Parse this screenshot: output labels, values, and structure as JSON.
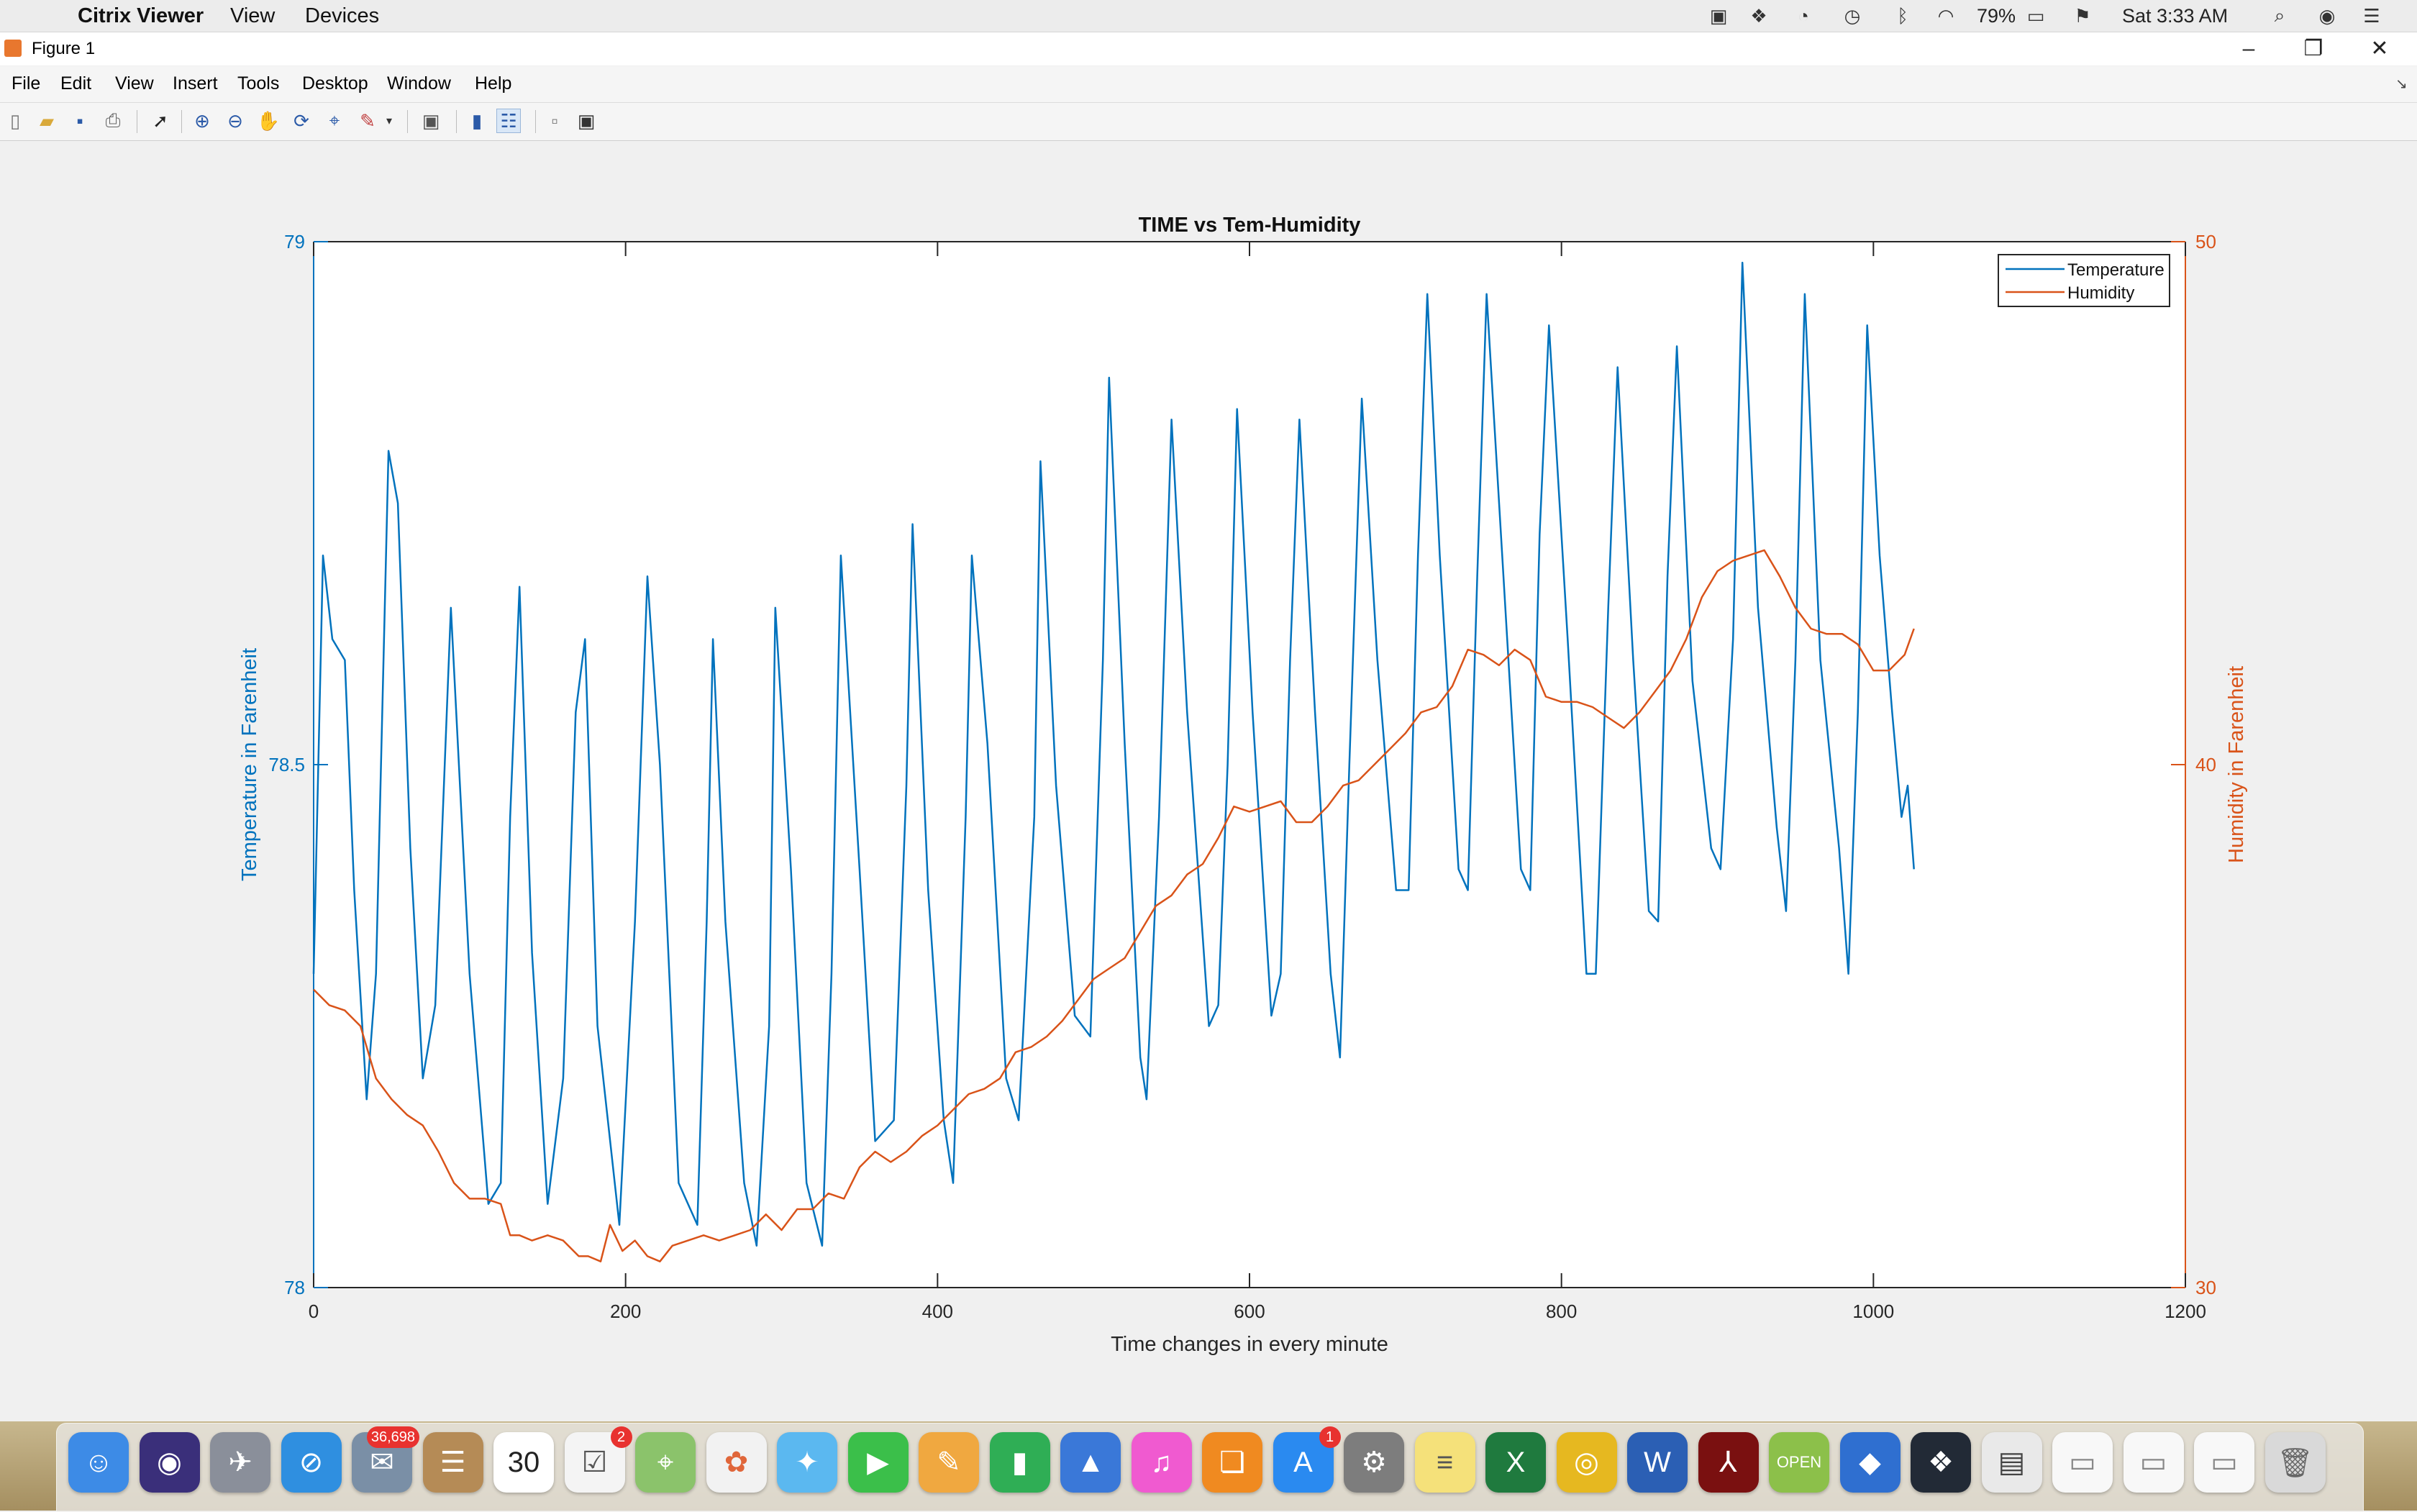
{
  "menubar": {
    "app_name": "Citrix Viewer",
    "items": [
      "View",
      "Devices"
    ],
    "battery": "79%",
    "clock": "Sat 3:33 AM"
  },
  "window": {
    "title": "Figure 1",
    "menu": [
      "File",
      "Edit",
      "View",
      "Insert",
      "Tools",
      "Desktop",
      "Window",
      "Help"
    ]
  },
  "toolbar": {
    "icons": [
      "new-figure-icon",
      "open-file-icon",
      "save-icon",
      "print-icon",
      "select-arrow-icon",
      "zoom-in-icon",
      "zoom-out-icon",
      "pan-hand-icon",
      "rotate-3d-icon",
      "data-cursor-icon",
      "brush-icon",
      "link-plot-icon",
      "colorbar-icon",
      "legend-icon",
      "hide-plot-tools-icon",
      "show-plot-tools-icon"
    ]
  },
  "chart_data": {
    "type": "line",
    "title": "TIME vs Tem-Humidity",
    "xlabel": "Time changes in every minute",
    "ylabel_left": "Temperature in Farenheit",
    "ylabel_right": "Humidity in Farenheit",
    "xlim": [
      0,
      1200
    ],
    "ylim_left": [
      78,
      79
    ],
    "ylim_right": [
      30,
      50
    ],
    "x_ticks": [
      0,
      200,
      400,
      600,
      800,
      1000,
      1200
    ],
    "y_ticks_left": [
      "78",
      "78.5",
      "79"
    ],
    "y_ticks_right": [
      "30",
      "40",
      "50"
    ],
    "legend_position": "top-right",
    "legend": [
      "Temperature",
      "Humidity"
    ],
    "colors": {
      "temperature": "#0072BD",
      "humidity": "#D95319",
      "left_axis": "#0072BD",
      "right_axis": "#D95319"
    },
    "series": [
      {
        "name": "Temperature",
        "axis": "left",
        "points": [
          [
            0,
            78.3
          ],
          [
            6,
            78.7
          ],
          [
            12,
            78.62
          ],
          [
            20,
            78.6
          ],
          [
            26,
            78.38
          ],
          [
            34,
            78.18
          ],
          [
            40,
            78.3
          ],
          [
            48,
            78.8
          ],
          [
            54,
            78.75
          ],
          [
            62,
            78.42
          ],
          [
            70,
            78.2
          ],
          [
            78,
            78.27
          ],
          [
            88,
            78.65
          ],
          [
            100,
            78.3
          ],
          [
            112,
            78.08
          ],
          [
            120,
            78.1
          ],
          [
            126,
            78.45
          ],
          [
            132,
            78.67
          ],
          [
            140,
            78.32
          ],
          [
            150,
            78.08
          ],
          [
            160,
            78.2
          ],
          [
            168,
            78.55
          ],
          [
            174,
            78.62
          ],
          [
            182,
            78.25
          ],
          [
            196,
            78.06
          ],
          [
            206,
            78.35
          ],
          [
            214,
            78.68
          ],
          [
            222,
            78.5
          ],
          [
            234,
            78.1
          ],
          [
            246,
            78.06
          ],
          [
            252,
            78.35
          ],
          [
            256,
            78.62
          ],
          [
            264,
            78.35
          ],
          [
            276,
            78.1
          ],
          [
            284,
            78.04
          ],
          [
            292,
            78.25
          ],
          [
            296,
            78.65
          ],
          [
            306,
            78.4
          ],
          [
            316,
            78.1
          ],
          [
            326,
            78.04
          ],
          [
            332,
            78.3
          ],
          [
            338,
            78.7
          ],
          [
            350,
            78.4
          ],
          [
            360,
            78.14
          ],
          [
            372,
            78.16
          ],
          [
            380,
            78.48
          ],
          [
            384,
            78.73
          ],
          [
            394,
            78.38
          ],
          [
            404,
            78.16
          ],
          [
            410,
            78.1
          ],
          [
            418,
            78.45
          ],
          [
            422,
            78.7
          ],
          [
            432,
            78.52
          ],
          [
            444,
            78.2
          ],
          [
            452,
            78.16
          ],
          [
            462,
            78.45
          ],
          [
            466,
            78.79
          ],
          [
            476,
            78.48
          ],
          [
            488,
            78.26
          ],
          [
            498,
            78.24
          ],
          [
            506,
            78.6
          ],
          [
            510,
            78.87
          ],
          [
            520,
            78.52
          ],
          [
            530,
            78.22
          ],
          [
            534,
            78.18
          ],
          [
            542,
            78.45
          ],
          [
            550,
            78.83
          ],
          [
            560,
            78.55
          ],
          [
            574,
            78.25
          ],
          [
            580,
            78.27
          ],
          [
            586,
            78.5
          ],
          [
            592,
            78.84
          ],
          [
            602,
            78.55
          ],
          [
            614,
            78.26
          ],
          [
            620,
            78.3
          ],
          [
            626,
            78.6
          ],
          [
            632,
            78.83
          ],
          [
            642,
            78.55
          ],
          [
            652,
            78.3
          ],
          [
            658,
            78.22
          ],
          [
            664,
            78.5
          ],
          [
            672,
            78.85
          ],
          [
            682,
            78.6
          ],
          [
            694,
            78.38
          ],
          [
            702,
            78.38
          ],
          [
            708,
            78.7
          ],
          [
            714,
            78.95
          ],
          [
            722,
            78.7
          ],
          [
            734,
            78.4
          ],
          [
            740,
            78.38
          ],
          [
            746,
            78.68
          ],
          [
            752,
            78.95
          ],
          [
            762,
            78.7
          ],
          [
            774,
            78.4
          ],
          [
            780,
            78.38
          ],
          [
            786,
            78.72
          ],
          [
            792,
            78.92
          ],
          [
            804,
            78.62
          ],
          [
            816,
            78.3
          ],
          [
            822,
            78.3
          ],
          [
            830,
            78.65
          ],
          [
            836,
            78.88
          ],
          [
            846,
            78.6
          ],
          [
            856,
            78.36
          ],
          [
            862,
            78.35
          ],
          [
            868,
            78.68
          ],
          [
            874,
            78.9
          ],
          [
            884,
            78.58
          ],
          [
            896,
            78.42
          ],
          [
            902,
            78.4
          ],
          [
            910,
            78.62
          ],
          [
            916,
            78.98
          ],
          [
            926,
            78.65
          ],
          [
            938,
            78.44
          ],
          [
            944,
            78.36
          ],
          [
            950,
            78.6
          ],
          [
            956,
            78.95
          ],
          [
            966,
            78.6
          ],
          [
            978,
            78.42
          ],
          [
            984,
            78.3
          ],
          [
            990,
            78.55
          ],
          [
            996,
            78.92
          ],
          [
            1004,
            78.7
          ],
          [
            1012,
            78.55
          ],
          [
            1018,
            78.45
          ],
          [
            1022,
            78.48
          ],
          [
            1026,
            78.4
          ]
        ]
      },
      {
        "name": "Humidity",
        "axis": "right",
        "points": [
          [
            0,
            35.7
          ],
          [
            10,
            35.4
          ],
          [
            20,
            35.3
          ],
          [
            30,
            35.0
          ],
          [
            40,
            34.0
          ],
          [
            50,
            33.6
          ],
          [
            60,
            33.3
          ],
          [
            70,
            33.1
          ],
          [
            80,
            32.6
          ],
          [
            90,
            32.0
          ],
          [
            100,
            31.7
          ],
          [
            110,
            31.7
          ],
          [
            120,
            31.6
          ],
          [
            126,
            31.0
          ],
          [
            132,
            31.0
          ],
          [
            140,
            30.9
          ],
          [
            150,
            31.0
          ],
          [
            160,
            30.9
          ],
          [
            170,
            30.6
          ],
          [
            176,
            30.6
          ],
          [
            184,
            30.5
          ],
          [
            190,
            31.2
          ],
          [
            198,
            30.7
          ],
          [
            206,
            30.9
          ],
          [
            214,
            30.6
          ],
          [
            222,
            30.5
          ],
          [
            230,
            30.8
          ],
          [
            240,
            30.9
          ],
          [
            250,
            31.0
          ],
          [
            260,
            30.9
          ],
          [
            270,
            31.0
          ],
          [
            280,
            31.1
          ],
          [
            290,
            31.4
          ],
          [
            300,
            31.1
          ],
          [
            310,
            31.5
          ],
          [
            320,
            31.5
          ],
          [
            330,
            31.8
          ],
          [
            340,
            31.7
          ],
          [
            350,
            32.3
          ],
          [
            360,
            32.6
          ],
          [
            370,
            32.4
          ],
          [
            380,
            32.6
          ],
          [
            390,
            32.9
          ],
          [
            400,
            33.1
          ],
          [
            410,
            33.4
          ],
          [
            420,
            33.7
          ],
          [
            430,
            33.8
          ],
          [
            440,
            34.0
          ],
          [
            450,
            34.5
          ],
          [
            460,
            34.6
          ],
          [
            470,
            34.8
          ],
          [
            480,
            35.1
          ],
          [
            490,
            35.5
          ],
          [
            500,
            35.9
          ],
          [
            510,
            36.1
          ],
          [
            520,
            36.3
          ],
          [
            530,
            36.8
          ],
          [
            540,
            37.3
          ],
          [
            550,
            37.5
          ],
          [
            560,
            37.9
          ],
          [
            570,
            38.1
          ],
          [
            580,
            38.6
          ],
          [
            590,
            39.2
          ],
          [
            600,
            39.1
          ],
          [
            610,
            39.2
          ],
          [
            620,
            39.3
          ],
          [
            630,
            38.9
          ],
          [
            640,
            38.9
          ],
          [
            650,
            39.2
          ],
          [
            660,
            39.6
          ],
          [
            670,
            39.7
          ],
          [
            680,
            40.0
          ],
          [
            690,
            40.3
          ],
          [
            700,
            40.6
          ],
          [
            710,
            41.0
          ],
          [
            720,
            41.1
          ],
          [
            730,
            41.5
          ],
          [
            740,
            42.2
          ],
          [
            750,
            42.1
          ],
          [
            760,
            41.9
          ],
          [
            770,
            42.2
          ],
          [
            780,
            42.0
          ],
          [
            790,
            41.3
          ],
          [
            800,
            41.2
          ],
          [
            810,
            41.2
          ],
          [
            820,
            41.1
          ],
          [
            830,
            40.9
          ],
          [
            840,
            40.7
          ],
          [
            850,
            41.0
          ],
          [
            860,
            41.4
          ],
          [
            870,
            41.8
          ],
          [
            880,
            42.4
          ],
          [
            890,
            43.2
          ],
          [
            900,
            43.7
          ],
          [
            910,
            43.9
          ],
          [
            920,
            44.0
          ],
          [
            930,
            44.1
          ],
          [
            940,
            43.6
          ],
          [
            950,
            43.0
          ],
          [
            960,
            42.6
          ],
          [
            970,
            42.5
          ],
          [
            980,
            42.5
          ],
          [
            990,
            42.3
          ],
          [
            1000,
            41.8
          ],
          [
            1010,
            41.8
          ],
          [
            1020,
            42.1
          ],
          [
            1026,
            42.6
          ]
        ]
      }
    ]
  },
  "dock": {
    "apps": [
      {
        "name": "finder",
        "glyph": "☺",
        "color": "#3d8be6"
      },
      {
        "name": "siri",
        "glyph": "◉",
        "color": "#3a2f7a"
      },
      {
        "name": "launchpad",
        "glyph": "✈",
        "color": "#8a8f9a"
      },
      {
        "name": "safari",
        "glyph": "⊘",
        "color": "#2f8fe0"
      },
      {
        "name": "mail",
        "glyph": "✉",
        "color": "#7a8fa6",
        "badge": "36,698"
      },
      {
        "name": "contacts",
        "glyph": "☰",
        "color": "#b58b56"
      },
      {
        "name": "calendar",
        "glyph": "30",
        "color": "#ffffff",
        "text": "#222"
      },
      {
        "name": "reminders",
        "glyph": "☑",
        "color": "#f4f4f4",
        "text": "#555",
        "badge": "2"
      },
      {
        "name": "maps",
        "glyph": "⌖",
        "color": "#8bc36b"
      },
      {
        "name": "photos",
        "glyph": "✿",
        "color": "#f2f2f2",
        "text": "#e0663a"
      },
      {
        "name": "messages",
        "glyph": "✦",
        "color": "#5bb8f0"
      },
      {
        "name": "facetime",
        "glyph": "▶",
        "color": "#3bbf4a"
      },
      {
        "name": "pages",
        "glyph": "✎",
        "color": "#f0a840"
      },
      {
        "name": "numbers",
        "glyph": "▮",
        "color": "#2fae55"
      },
      {
        "name": "keynote",
        "glyph": "▲",
        "color": "#3a78d8"
      },
      {
        "name": "itunes",
        "glyph": "♫",
        "color": "#f05ad0"
      },
      {
        "name": "ibooks",
        "glyph": "❏",
        "color": "#f08a20"
      },
      {
        "name": "app-store",
        "glyph": "A",
        "color": "#2a8af0",
        "badge": "1"
      },
      {
        "name": "system-preferences",
        "glyph": "⚙",
        "color": "#7d7d7d"
      },
      {
        "name": "notes",
        "glyph": "≡",
        "color": "#f5e17a",
        "text": "#555"
      },
      {
        "name": "excel",
        "glyph": "X",
        "color": "#1f7a3e"
      },
      {
        "name": "chrome",
        "glyph": "◎",
        "color": "#e6b820"
      },
      {
        "name": "word",
        "glyph": "W",
        "color": "#2b5fb4"
      },
      {
        "name": "acrobat",
        "glyph": "⅄",
        "color": "#7a1010"
      },
      {
        "name": "open-office",
        "glyph": "OPEN",
        "color": "#8cc04a"
      },
      {
        "name": "vlc-like",
        "glyph": "◆",
        "color": "#2f6fd0"
      },
      {
        "name": "activity-monitor",
        "glyph": "❖",
        "color": "#222a36"
      },
      {
        "name": "document-stack",
        "glyph": "▤",
        "color": "#e9e9e9",
        "text": "#444"
      },
      {
        "name": "window-thumbnail-1",
        "glyph": "▭",
        "color": "#f8f8f8",
        "text": "#888"
      },
      {
        "name": "window-thumbnail-2",
        "glyph": "▭",
        "color": "#f8f8f8",
        "text": "#888"
      },
      {
        "name": "window-thumbnail-3",
        "glyph": "▭",
        "color": "#f8f8f8",
        "text": "#888"
      },
      {
        "name": "trash",
        "glyph": "🗑",
        "color": "#d9d9d9",
        "text": "#666"
      }
    ]
  }
}
